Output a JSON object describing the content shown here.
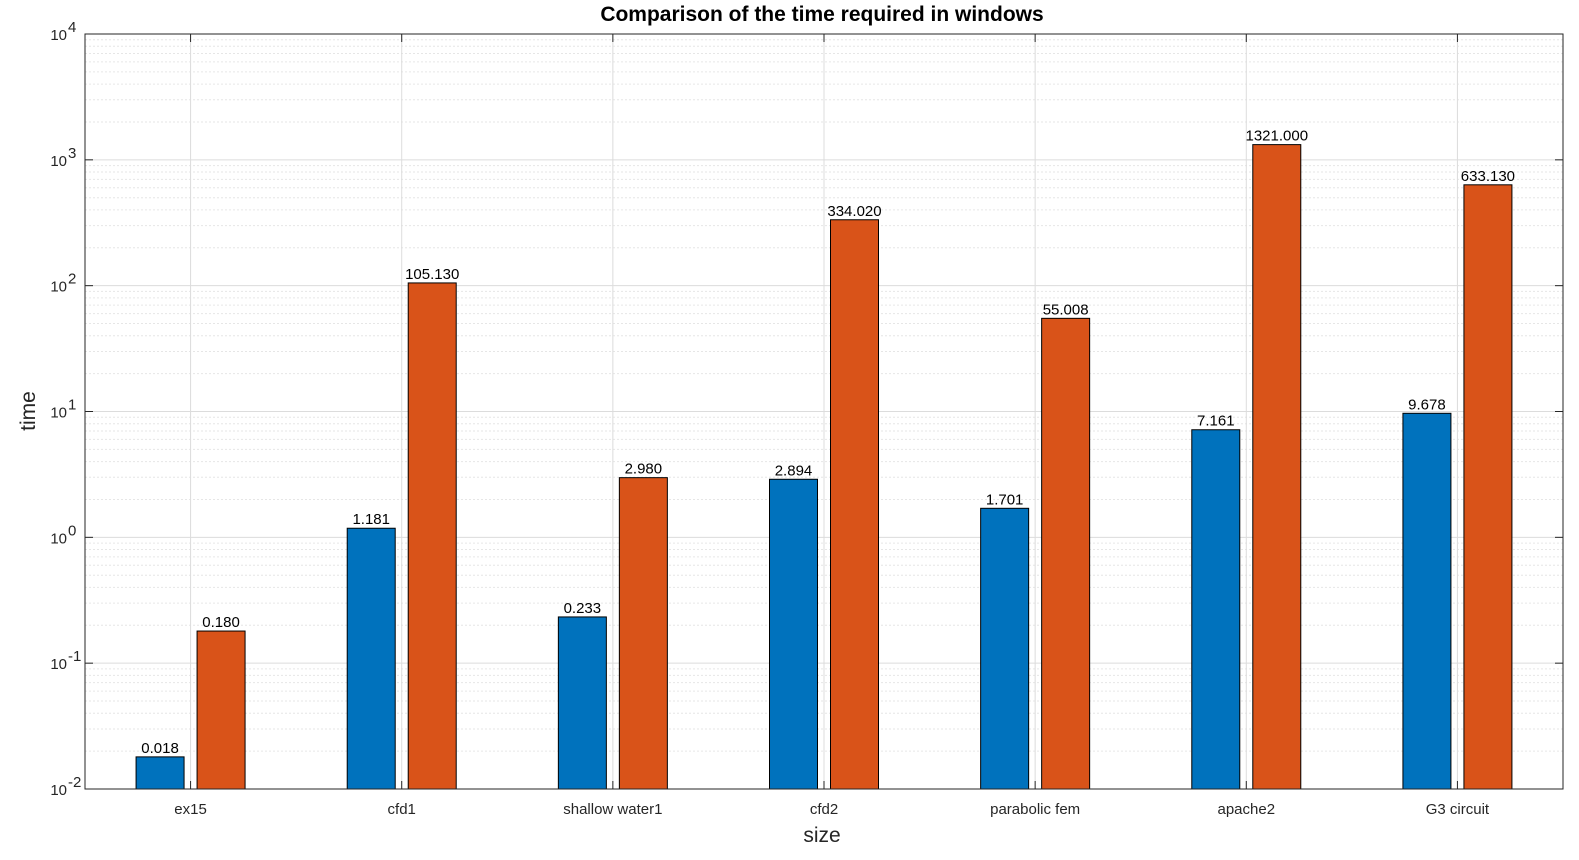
{
  "chart_data": {
    "type": "bar",
    "title": "Comparison of the time required in windows",
    "xlabel": "size",
    "ylabel": "time",
    "categories": [
      "ex15",
      "cfd1",
      "shallow water1",
      "cfd2",
      "parabolic fem",
      "apache2",
      "G3 circuit"
    ],
    "series": [
      {
        "color": "#0072BD",
        "values": [
          0.018,
          1.181,
          0.233,
          2.894,
          1.701,
          7.161,
          9.678
        ],
        "labels": [
          "0.018",
          "1.181",
          "0.233",
          "2.894",
          "1.701",
          "7.161",
          "9.678"
        ]
      },
      {
        "color": "#D95319",
        "values": [
          0.18,
          105.13,
          2.98,
          334.02,
          55.008,
          1321.0,
          633.13
        ],
        "labels": [
          "0.180",
          "105.130",
          "2.980",
          "334.020",
          "55.008",
          "1321.000",
          "633.130"
        ]
      }
    ],
    "yscale": "log",
    "ylim": [
      0.01,
      10000
    ],
    "yticks": [
      {
        "base": "10",
        "exp": "-2"
      },
      {
        "base": "10",
        "exp": "-1"
      },
      {
        "base": "10",
        "exp": "0"
      },
      {
        "base": "10",
        "exp": "1"
      },
      {
        "base": "10",
        "exp": "2"
      },
      {
        "base": "10",
        "exp": "3"
      },
      {
        "base": "10",
        "exp": "4"
      }
    ],
    "grid": true,
    "legend": "none"
  }
}
